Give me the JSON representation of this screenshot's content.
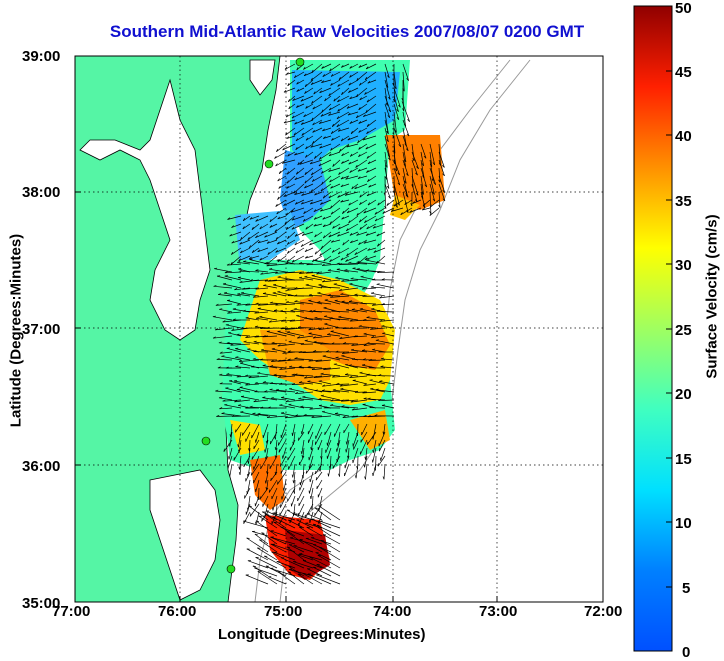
{
  "title": "Southern Mid-Atlantic Raw Velocities 2007/08/07 0200 GMT",
  "xlabel": "Longitude (Degrees:Minutes)",
  "ylabel": "Latitude (Degrees:Minutes)",
  "colorbar": {
    "label": "Surface Velocity (cm/s)",
    "min": 0,
    "max": 50,
    "ticks": [
      "0",
      "5",
      "10",
      "15",
      "20",
      "25",
      "30",
      "35",
      "40",
      "45",
      "50"
    ]
  },
  "map": {
    "x_ticks": [
      "77:00",
      "76:00",
      "75:00",
      "74:00",
      "73:00",
      "72:00"
    ],
    "y_ticks": [
      "39:00",
      "38:00",
      "37:00",
      "36:00",
      "35:00"
    ],
    "lon_range": [
      -77,
      -72
    ],
    "lat_range": [
      35,
      39
    ],
    "grid": "dotted",
    "land_color": "#55f5a5",
    "vector_color": "#000000",
    "station_color": "#22dd22"
  }
}
